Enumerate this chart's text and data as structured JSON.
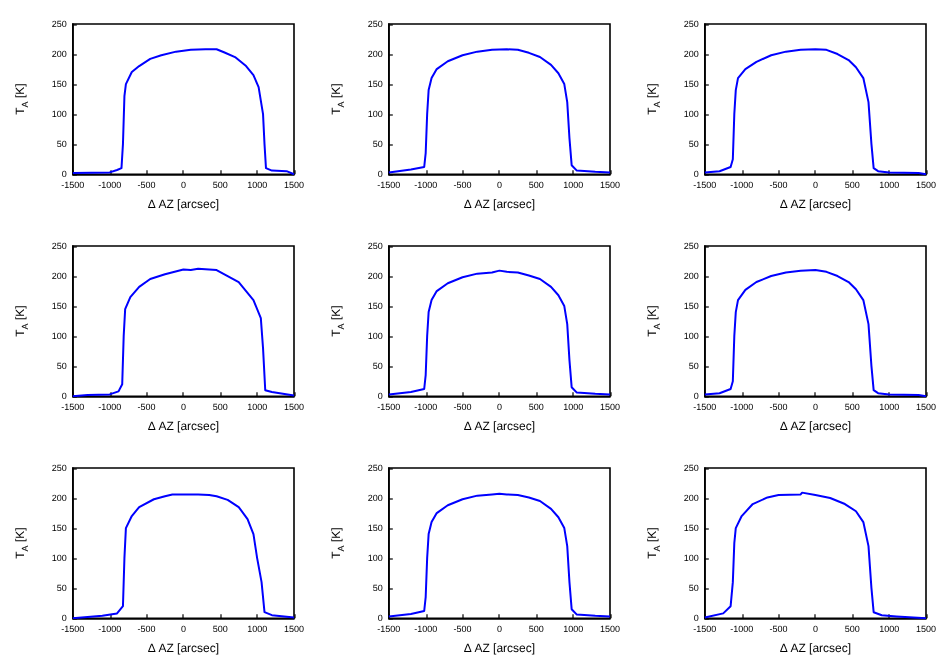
{
  "chart_data": [
    {
      "type": "line",
      "xlabel": "Δ AZ [arcsec]",
      "ylabel": "T$_{A}$ [K]",
      "color": "#0000ff",
      "marker": "none",
      "xlim": [
        -1500,
        1500
      ],
      "ylim": [
        0,
        250
      ],
      "xticks": [
        -1500,
        -1000,
        -500,
        0,
        500,
        1000,
        1500
      ],
      "yticks": [
        0,
        50,
        100,
        150,
        200,
        250
      ],
      "x": [
        -1500,
        -1000,
        -900,
        -840,
        -820,
        -800,
        -780,
        -700,
        -600,
        -450,
        -300,
        -100,
        100,
        300,
        450,
        550,
        700,
        850,
        950,
        1020,
        1080,
        1100,
        1120,
        1200,
        1400,
        1500
      ],
      "values": [
        2,
        3,
        7,
        10,
        50,
        130,
        150,
        170,
        180,
        192,
        198,
        204,
        207,
        208,
        208,
        203,
        195,
        180,
        165,
        145,
        100,
        50,
        10,
        6,
        5,
        0
      ]
    },
    {
      "type": "line",
      "xlabel": "Δ AZ [arcsec]",
      "ylabel": "T$_{A}$ [K]",
      "color": "#0000ff",
      "marker": "none",
      "xlim": [
        -1500,
        1500
      ],
      "ylim": [
        0,
        250
      ],
      "xticks": [
        -1500,
        -1000,
        -500,
        0,
        500,
        1000,
        1500
      ],
      "yticks": [
        0,
        50,
        100,
        150,
        200,
        250
      ],
      "x": [
        -1500,
        -1200,
        -1020,
        -1000,
        -980,
        -960,
        -920,
        -850,
        -700,
        -500,
        -300,
        -100,
        100,
        250,
        400,
        550,
        700,
        800,
        880,
        920,
        950,
        980,
        1050,
        1300,
        1500
      ],
      "values": [
        3,
        8,
        12,
        35,
        100,
        140,
        160,
        175,
        188,
        198,
        204,
        207,
        208,
        207,
        202,
        195,
        182,
        168,
        150,
        120,
        60,
        15,
        6,
        4,
        3
      ]
    },
    {
      "type": "line",
      "xlabel": "Δ AZ [arcsec]",
      "ylabel": "T$_{A}$ [K]",
      "color": "#0000ff",
      "marker": "none",
      "xlim": [
        -1500,
        1500
      ],
      "ylim": [
        0,
        250
      ],
      "xticks": [
        -1500,
        -1000,
        -500,
        0,
        500,
        1000,
        1500
      ],
      "yticks": [
        0,
        50,
        100,
        150,
        200,
        250
      ],
      "x": [
        -1500,
        -1300,
        -1150,
        -1120,
        -1100,
        -1080,
        -1050,
        -950,
        -800,
        -600,
        -400,
        -200,
        0,
        150,
        300,
        450,
        550,
        650,
        720,
        760,
        790,
        850,
        1000,
        1400,
        1500
      ],
      "values": [
        3,
        5,
        12,
        25,
        100,
        140,
        160,
        175,
        187,
        198,
        204,
        207,
        208,
        207,
        200,
        190,
        178,
        160,
        120,
        50,
        10,
        5,
        3,
        2,
        0
      ]
    },
    {
      "type": "line",
      "xlabel": "Δ AZ [arcsec]",
      "ylabel": "T$_{A}$ [K]",
      "color": "#0000ff",
      "marker": "none",
      "xlim": [
        -1500,
        1500
      ],
      "ylim": [
        0,
        250
      ],
      "xticks": [
        -1500,
        -1000,
        -500,
        0,
        500,
        1000,
        1500
      ],
      "yticks": [
        0,
        50,
        100,
        150,
        200,
        250
      ],
      "x": [
        -1500,
        -1300,
        -1000,
        -880,
        -830,
        -810,
        -790,
        -720,
        -600,
        -450,
        -250,
        0,
        100,
        200,
        350,
        450,
        600,
        750,
        850,
        950,
        1050,
        1080,
        1110,
        1200,
        1500
      ],
      "values": [
        0,
        2,
        3,
        8,
        20,
        100,
        145,
        165,
        182,
        195,
        203,
        211,
        210,
        212,
        211,
        210,
        200,
        190,
        175,
        160,
        130,
        80,
        10,
        7,
        1
      ]
    },
    {
      "type": "line",
      "xlabel": "Δ AZ [arcsec]",
      "ylabel": "T$_{A}$ [K]",
      "color": "#0000ff",
      "marker": "none",
      "xlim": [
        -1500,
        1500
      ],
      "ylim": [
        0,
        250
      ],
      "xticks": [
        -1500,
        -1000,
        -500,
        0,
        500,
        1000,
        1500
      ],
      "yticks": [
        0,
        50,
        100,
        150,
        200,
        250
      ],
      "x": [
        -1500,
        -1200,
        -1020,
        -1000,
        -980,
        -960,
        -920,
        -850,
        -700,
        -500,
        -300,
        -100,
        0,
        100,
        250,
        400,
        550,
        700,
        800,
        880,
        920,
        950,
        980,
        1050,
        1300,
        1500
      ],
      "values": [
        3,
        7,
        12,
        35,
        100,
        140,
        160,
        175,
        188,
        198,
        204,
        206,
        209,
        207,
        206,
        201,
        195,
        182,
        168,
        150,
        120,
        60,
        15,
        6,
        4,
        3
      ]
    },
    {
      "type": "line",
      "xlabel": "Δ AZ [arcsec]",
      "ylabel": "T$_{A}$ [K]",
      "color": "#0000ff",
      "marker": "none",
      "xlim": [
        -1500,
        1500
      ],
      "ylim": [
        0,
        250
      ],
      "xticks": [
        -1500,
        -1000,
        -500,
        0,
        500,
        1000,
        1500
      ],
      "yticks": [
        0,
        50,
        100,
        150,
        200,
        250
      ],
      "x": [
        -1500,
        -1300,
        -1150,
        -1120,
        -1100,
        -1080,
        -1050,
        -950,
        -800,
        -600,
        -400,
        -200,
        0,
        150,
        300,
        450,
        550,
        650,
        720,
        760,
        790,
        850,
        1000,
        1400,
        1500
      ],
      "values": [
        3,
        5,
        12,
        25,
        100,
        140,
        160,
        177,
        190,
        200,
        206,
        209,
        210,
        207,
        200,
        190,
        178,
        160,
        120,
        50,
        10,
        5,
        3,
        2,
        0
      ]
    },
    {
      "type": "line",
      "xlabel": "Δ AZ [arcsec]",
      "ylabel": "T$_{A}$ [K]",
      "color": "#0000ff",
      "marker": "none",
      "xlim": [
        -1500,
        1500
      ],
      "ylim": [
        0,
        250
      ],
      "xticks": [
        -1500,
        -1000,
        -500,
        0,
        500,
        1000,
        1500
      ],
      "yticks": [
        0,
        50,
        100,
        150,
        200,
        250
      ],
      "x": [
        -1500,
        -1100,
        -900,
        -820,
        -800,
        -780,
        -700,
        -600,
        -400,
        -250,
        -150,
        0,
        200,
        350,
        450,
        600,
        750,
        870,
        950,
        1000,
        1060,
        1100,
        1200,
        1500
      ],
      "values": [
        0,
        4,
        8,
        20,
        100,
        150,
        170,
        185,
        198,
        203,
        206,
        206,
        206,
        205,
        203,
        197,
        185,
        165,
        140,
        100,
        60,
        10,
        5,
        1
      ]
    },
    {
      "type": "line",
      "xlabel": "Δ AZ [arcsec]",
      "ylabel": "T$_{A}$ [K]",
      "color": "#0000ff",
      "marker": "none",
      "xlim": [
        -1500,
        1500
      ],
      "ylim": [
        0,
        250
      ],
      "xticks": [
        -1500,
        -1000,
        -500,
        0,
        500,
        1000,
        1500
      ],
      "yticks": [
        0,
        50,
        100,
        150,
        200,
        250
      ],
      "x": [
        -1500,
        -1200,
        -1020,
        -1000,
        -980,
        -960,
        -920,
        -850,
        -700,
        -500,
        -300,
        -100,
        0,
        100,
        250,
        400,
        550,
        700,
        800,
        880,
        920,
        950,
        980,
        1050,
        1300,
        1500
      ],
      "values": [
        3,
        7,
        12,
        35,
        100,
        140,
        160,
        175,
        188,
        198,
        204,
        206,
        207,
        206,
        205,
        201,
        195,
        182,
        168,
        150,
        120,
        60,
        15,
        6,
        4,
        3
      ]
    },
    {
      "type": "line",
      "xlabel": "Δ AZ [arcsec]",
      "ylabel": "T$_{A}$ [K]",
      "color": "#0000ff",
      "marker": "none",
      "xlim": [
        -1500,
        1500
      ],
      "ylim": [
        0,
        250
      ],
      "xticks": [
        -1500,
        -1000,
        -500,
        0,
        500,
        1000,
        1500
      ],
      "yticks": [
        0,
        50,
        100,
        150,
        200,
        250
      ],
      "x": [
        -1500,
        -1250,
        -1150,
        -1120,
        -1100,
        -1080,
        -1000,
        -850,
        -650,
        -500,
        -200,
        -180,
        0,
        200,
        400,
        550,
        650,
        720,
        760,
        790,
        900,
        1100,
        1500
      ],
      "values": [
        1,
        8,
        20,
        60,
        125,
        150,
        170,
        190,
        201,
        205,
        206,
        209,
        205,
        200,
        190,
        178,
        160,
        120,
        50,
        10,
        5,
        3,
        0
      ]
    }
  ]
}
